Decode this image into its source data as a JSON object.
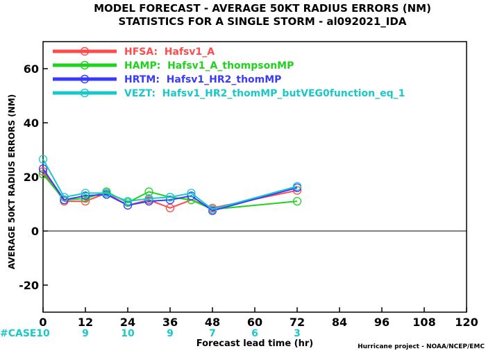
{
  "chart_data": {
    "type": "line",
    "title": "MODEL FORECAST - AVERAGE 50KT RADIUS ERRORS (NM)",
    "subtitle": "STATISTICS FOR A SINGLE STORM - al092021_IDA",
    "xlabel": "Forecast lead time (hr)",
    "ylabel": "AVERAGE 50KT RADIUS ERRORS (NM)",
    "xlim": [
      0,
      120
    ],
    "ylim": [
      -30,
      70
    ],
    "xticks": [
      0,
      12,
      24,
      36,
      48,
      60,
      72,
      84,
      96,
      108,
      120
    ],
    "yticks": [
      -20,
      0,
      20,
      40,
      60
    ],
    "legend_position": "top-left",
    "grid": false,
    "series": [
      {
        "name": "HFSA:  Hafsv1_A",
        "color": "#ff4b4b",
        "x": [
          0,
          6,
          12,
          18,
          24,
          30,
          36,
          42,
          48,
          72
        ],
        "y": [
          22,
          11,
          11,
          14,
          9.5,
          11.5,
          8.5,
          11.5,
          8.5,
          15
        ]
      },
      {
        "name": "HAMP:  Hafsv1_A_thompsonMP",
        "color": "#1ed21e",
        "x": [
          0,
          6,
          12,
          18,
          24,
          30,
          36,
          42,
          48,
          72
        ],
        "y": [
          21,
          11.5,
          12,
          14.5,
          10.5,
          14.5,
          12.5,
          11.5,
          8,
          11
        ]
      },
      {
        "name": "HRTM:  Hafsv1_HR2_thomMP",
        "color": "#3a3aff",
        "x": [
          0,
          6,
          12,
          18,
          24,
          30,
          36,
          42,
          48,
          72
        ],
        "y": [
          23,
          11.5,
          13,
          13.5,
          9.5,
          11,
          11.5,
          13,
          7.5,
          16
        ]
      },
      {
        "name": "VEZT:  Hafsv1_HR2_thomMP_butVEG0function_eq_1",
        "color": "#19c8c8",
        "x": [
          0,
          6,
          12,
          18,
          24,
          30,
          36,
          42,
          48,
          72
        ],
        "y": [
          26.5,
          12.5,
          14,
          14,
          11,
          12,
          12.5,
          14,
          8,
          16.5
        ]
      }
    ],
    "cases": {
      "label": "#CASE",
      "x": [
        0,
        12,
        24,
        36,
        48,
        60,
        72
      ],
      "values": [
        "10",
        "9",
        "10",
        "9",
        "7",
        "6",
        "3"
      ]
    },
    "credit": "Hurricane project - NOAA/NCEP/EMC"
  },
  "colors": {
    "axis": "#000000",
    "zero_line": "#000000",
    "cases": "#19c8c8"
  }
}
